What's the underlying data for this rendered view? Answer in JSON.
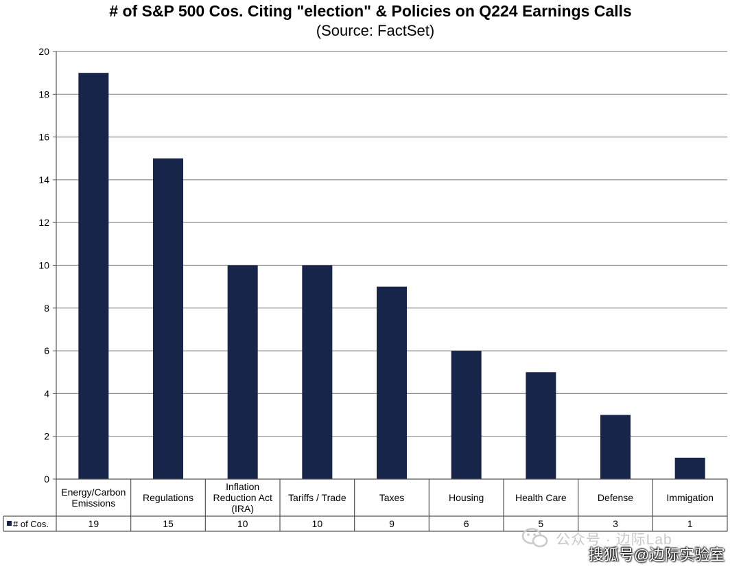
{
  "chart_data": {
    "type": "bar",
    "title": "# of S&P 500 Cos. Citing  \"election\" & Policies on Q224 Earnings Calls",
    "subtitle": "(Source: FactSet)",
    "categories": [
      [
        "Energy/Carbon",
        "Emissions"
      ],
      [
        "Regulations"
      ],
      [
        "Inflation",
        "Reduction Act",
        "(IRA)"
      ],
      [
        "Tariffs / Trade"
      ],
      [
        "Taxes"
      ],
      [
        "Housing"
      ],
      [
        "Health Care"
      ],
      [
        "Defense"
      ],
      [
        "Immigation"
      ]
    ],
    "series": [
      {
        "name": "# of Cos.",
        "values": [
          19,
          15,
          10,
          10,
          9,
          6,
          5,
          3,
          1
        ]
      }
    ],
    "ylim": [
      0,
      20
    ],
    "yticks": [
      0,
      2,
      4,
      6,
      8,
      10,
      12,
      14,
      16,
      18,
      20
    ],
    "grid": true,
    "legend": "data-table-row",
    "bar_color": "#18254a"
  },
  "watermark": {
    "line1": "公众号 · 边际Lab",
    "line2": "搜狐号@边际实验室"
  }
}
